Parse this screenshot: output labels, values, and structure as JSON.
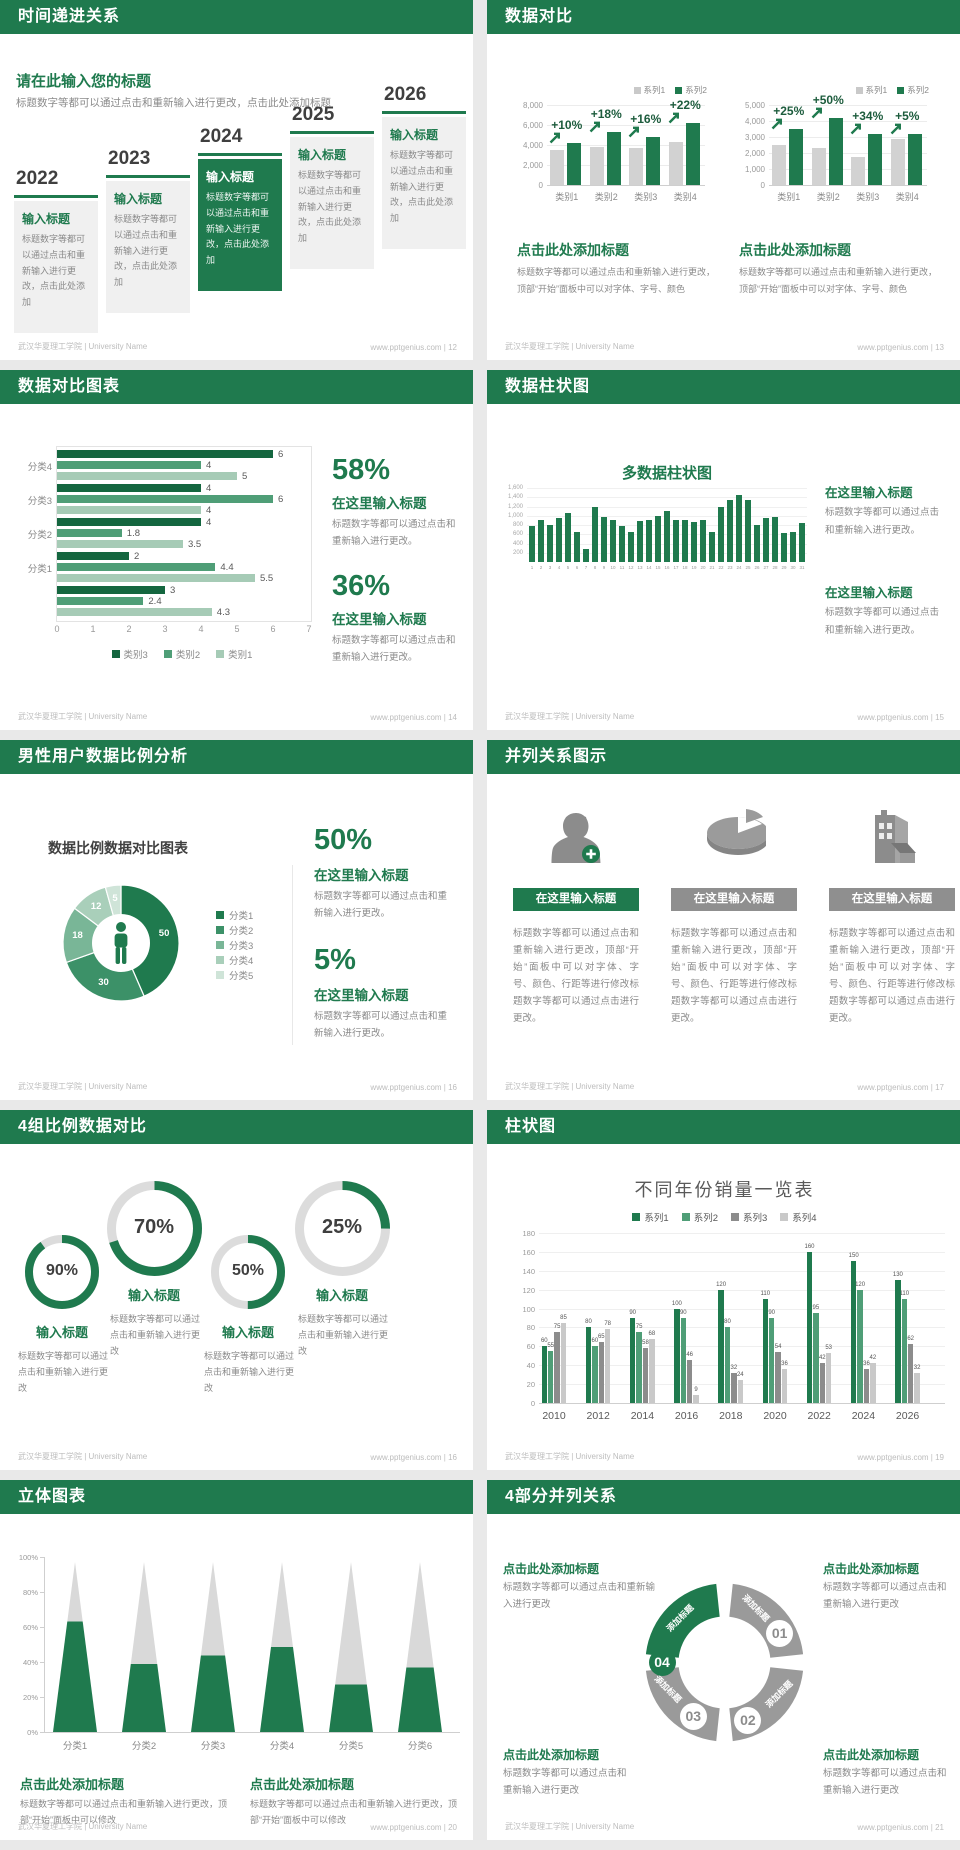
{
  "footer": {
    "left": "武汉华夏理工学院 | University Name",
    "site": "www.pptgenius.com"
  },
  "colors": {
    "green": "#1f7a4e",
    "green_dark": "#14663f",
    "green_mid": "#4f9e77",
    "green_light": "#a6cbb6",
    "gray_bar": "#d2d2d2",
    "gray_dark": "#8c8c8c",
    "gray_light": "#c9c9c9",
    "banner_gray": "#8f8f8f",
    "text_gray": "#8a8a8a",
    "text_dark": "#3f3f3f"
  },
  "slides": [
    {
      "title": "时间递进关系",
      "footer_right": "www.pptgenius.com | 12",
      "intro_title": "请在此输入您的标题",
      "intro_body": "标题数字等都可以通过点击和重新输入进行更改，点击此处添加标题",
      "timeline": [
        {
          "year": "2022",
          "label": "输入标题",
          "body": "标题数字等都可以通过点击和重新输入进行更改，点击此处添加",
          "highlight": false
        },
        {
          "year": "2023",
          "label": "输入标题",
          "body": "标题数字等都可以通过点击和重新输入进行更改，点击此处添加",
          "highlight": false
        },
        {
          "year": "2024",
          "label": "输入标题",
          "body": "标题数字等都可以通过点击和重新输入进行更改，点击此处添加",
          "highlight": true
        },
        {
          "year": "2025",
          "label": "输入标题",
          "body": "标题数字等都可以通过点击和重新输入进行更改，点击此处添加",
          "highlight": false
        },
        {
          "year": "2026",
          "label": "输入标题",
          "body": "标题数字等都可以通过点击和重新输入进行更改，点击此处添加",
          "highlight": false
        }
      ]
    },
    {
      "title": "数据对比",
      "footer_right": "www.pptgenius.com | 13",
      "caption_title": "点击此处添加标题",
      "caption_body": "标题数字等都可以通过点击和重新输入进行更改，顶部“开始”面板中可以对字体、字号、颜色"
    },
    {
      "title": "数据对比图表",
      "footer_right": "www.pptgenius.com | 14",
      "stats": [
        {
          "value": "58%",
          "title": "在这里输入标题",
          "body": "标题数字等都可以通过点击和重新输入进行更改。"
        },
        {
          "value": "36%",
          "title": "在这里输入标题",
          "body": "标题数字等都可以通过点击和重新输入进行更改。"
        }
      ]
    },
    {
      "title": "数据柱状图",
      "footer_right": "www.pptgenius.com | 15",
      "blocks": [
        {
          "title": "在这里输入标题",
          "body": "标题数字等都可以通过点击和重新输入进行更改。"
        },
        {
          "title": "在这里输入标题",
          "body": "标题数字等都可以通过点击和重新输入进行更改。"
        }
      ]
    },
    {
      "title": "男性用户数据比例分析",
      "footer_right": "www.pptgenius.com | 16",
      "chart_title": "数据比例数据对比图表",
      "stats": [
        {
          "value": "50%",
          "title": "在这里输入标题",
          "body": "标题数字等都可以通过点击和重新输入进行更改。"
        },
        {
          "value": "5%",
          "title": "在这里输入标题",
          "body": "标题数字等都可以通过点击和重新输入进行更改。"
        }
      ]
    },
    {
      "title": "并列关系图示",
      "footer_right": "www.pptgenius.com | 17",
      "items": [
        {
          "icon": "woman-add-icon",
          "banner": "在这里输入标题",
          "body": "标题数字等都可以通过点击和重新输入进行更改，顶部“开始”面板中可以对字体、字号、颜色、行距等进行修改标题数字等都可以通过点击进行更改。"
        },
        {
          "icon": "pie-3d-icon",
          "banner": "在这里输入标题",
          "body": "标题数字等都可以通过点击和重新输入进行更改，顶部“开始”面板中可以对字体、字号、颜色、行距等进行修改标题数字等都可以通过点击进行更改。"
        },
        {
          "icon": "building-icon",
          "banner": "在这里输入标题",
          "body": "标题数字等都可以通过点击和重新输入进行更改，顶部“开始”面板中可以对字体、字号、颜色、行距等进行修改标题数字等都可以通过点击进行更改。"
        }
      ]
    },
    {
      "title": "4组比例数据对比",
      "footer_right": "www.pptgenius.com | 16",
      "items": [
        {
          "percent": "90%",
          "title": "输入标题",
          "body": "标题数字等都可以通过点击和重新输入进行更改"
        },
        {
          "percent": "70%",
          "title": "输入标题",
          "body": "标题数字等都可以通过点击和重新输入进行更改"
        },
        {
          "percent": "50%",
          "title": "输入标题",
          "body": "标题数字等都可以通过点击和重新输入进行更改"
        },
        {
          "percent": "25%",
          "title": "输入标题",
          "body": "标题数字等都可以通过点击和重新输入进行更改"
        }
      ]
    },
    {
      "title": "柱状图",
      "footer_right": "www.pptgenius.com | 19"
    },
    {
      "title": "立体图表",
      "footer_right": "www.pptgenius.com | 20",
      "captions": [
        {
          "title": "点击此处添加标题",
          "body": "标题数字等都可以通过点击和重新输入进行更改，顶部“开始”面板中可以修改"
        },
        {
          "title": "点击此处添加标题",
          "body": "标题数字等都可以通过点击和重新输入进行更改，顶部“开始”面板中可以修改"
        }
      ]
    },
    {
      "title": "4部分并列关系",
      "footer_right": "www.pptgenius.com | 21",
      "arc_label": "添加标题",
      "numbers": [
        "01",
        "02",
        "03",
        "04"
      ],
      "blocks": [
        {
          "title": "点击此处添加标题",
          "body": "标题数字等都可以通过点击和重新输入进行更改"
        },
        {
          "title": "点击此处添加标题",
          "body": "标题数字等都可以通过点击和重新输入进行更改"
        },
        {
          "title": "点击此处添加标题",
          "body": "标题数字等都可以通过点击和重新输入进行更改"
        },
        {
          "title": "点击此处添加标题",
          "body": "标题数字等都可以通过点击和重新输入进行更改"
        }
      ]
    }
  ],
  "chart_data": [
    {
      "type": "bar",
      "categories": [
        "类别1",
        "类别2",
        "类别3",
        "类别4"
      ],
      "series": [
        {
          "name": "系列1",
          "values": [
            3500,
            3800,
            3700,
            4300
          ]
        },
        {
          "name": "系列2",
          "values": [
            4200,
            5300,
            4800,
            6200
          ]
        }
      ],
      "growth_labels": [
        "+10%",
        "+18%",
        "+16%",
        "+22%"
      ],
      "ylim": [
        0,
        8000
      ],
      "yticks": [
        0,
        2000,
        4000,
        6000,
        8000
      ],
      "legend_position": "top-right",
      "grid": true
    },
    {
      "type": "bar",
      "categories": [
        "类别1",
        "类别2",
        "类别3",
        "类别4"
      ],
      "series": [
        {
          "name": "系列1",
          "values": [
            2500,
            2300,
            1750,
            2900
          ]
        },
        {
          "name": "系列2",
          "values": [
            3500,
            4200,
            3200,
            3200
          ]
        }
      ],
      "growth_labels": [
        "+25%",
        "+50%",
        "+34%",
        "+5%"
      ],
      "ylim": [
        0,
        5000
      ],
      "yticks": [
        0,
        1000,
        2000,
        3000,
        4000,
        5000
      ],
      "legend_position": "top-right",
      "grid": true
    },
    {
      "type": "bar-horizontal",
      "categories": [
        "分类4",
        "分类3",
        "分类2",
        "分类1",
        ""
      ],
      "series": [
        {
          "name": "类别3",
          "values": [
            6,
            4,
            4,
            2,
            3
          ]
        },
        {
          "name": "类别2",
          "values": [
            4,
            6,
            1.8,
            4.4,
            2.4
          ]
        },
        {
          "name": "类别1",
          "values": [
            5,
            4,
            3.5,
            5.5,
            4.3
          ]
        }
      ],
      "xlim": [
        0,
        7
      ],
      "xticks": [
        0,
        1,
        2,
        3,
        4,
        5,
        6,
        7
      ],
      "legend_position": "bottom"
    },
    {
      "type": "bar",
      "title": "多数据柱状图",
      "x": [
        1,
        2,
        3,
        4,
        5,
        6,
        7,
        8,
        9,
        10,
        11,
        12,
        13,
        14,
        15,
        16,
        17,
        18,
        19,
        20,
        21,
        22,
        23,
        24,
        25,
        26,
        27,
        28,
        29,
        30,
        31
      ],
      "values": [
        780,
        900,
        800,
        950,
        1050,
        650,
        280,
        1200,
        980,
        900,
        780,
        650,
        880,
        900,
        1000,
        1100,
        900,
        900,
        870,
        900,
        650,
        1200,
        1350,
        1450,
        1350,
        800,
        950,
        970,
        620,
        650,
        850
      ],
      "ylim": [
        0,
        1600
      ],
      "yticks": [
        200,
        400,
        600,
        800,
        1000,
        1200,
        1400,
        1600
      ],
      "grid": true
    },
    {
      "type": "pie",
      "labels": [
        "分类1",
        "分类2",
        "分类3",
        "分类4",
        "分类5"
      ],
      "values": [
        50,
        30,
        18,
        12,
        5
      ],
      "colors": [
        "#1f7a4e",
        "#3c9168",
        "#79b697",
        "#a9cfba",
        "#cfe4d8"
      ],
      "center_icon": "person-icon",
      "legend_position": "right"
    },
    {
      "type": "rings",
      "values": [
        90,
        70,
        50,
        25
      ]
    },
    {
      "type": "bar",
      "title": "不同年份销量一览表",
      "categories": [
        "2010",
        "2012",
        "2014",
        "2016",
        "2018",
        "2020",
        "2022",
        "2024",
        "2026"
      ],
      "series": [
        {
          "name": "系列1",
          "values": [
            60,
            80,
            90,
            100,
            120,
            110,
            160,
            150,
            130
          ]
        },
        {
          "name": "系列2",
          "values": [
            55,
            60,
            75,
            90,
            80,
            90,
            95,
            120,
            110
          ]
        },
        {
          "name": "系列3",
          "values": [
            75,
            65,
            58,
            46,
            32,
            54,
            42,
            36,
            62
          ]
        },
        {
          "name": "系列4",
          "values": [
            85,
            78,
            68,
            9,
            24,
            36,
            53,
            42,
            32
          ]
        }
      ],
      "ylim": [
        0,
        180
      ],
      "yticks": [
        0,
        20,
        40,
        60,
        80,
        100,
        120,
        140,
        160,
        180
      ],
      "legend_position": "top",
      "grid": true
    },
    {
      "type": "cone",
      "categories": [
        "分类1",
        "分类2",
        "分类3",
        "分类4",
        "分类5",
        "分类6"
      ],
      "values_percent": [
        65,
        40,
        45,
        50,
        28,
        38
      ],
      "yticks": [
        "0%",
        "20%",
        "40%",
        "60%",
        "80%",
        "100%"
      ]
    }
  ]
}
